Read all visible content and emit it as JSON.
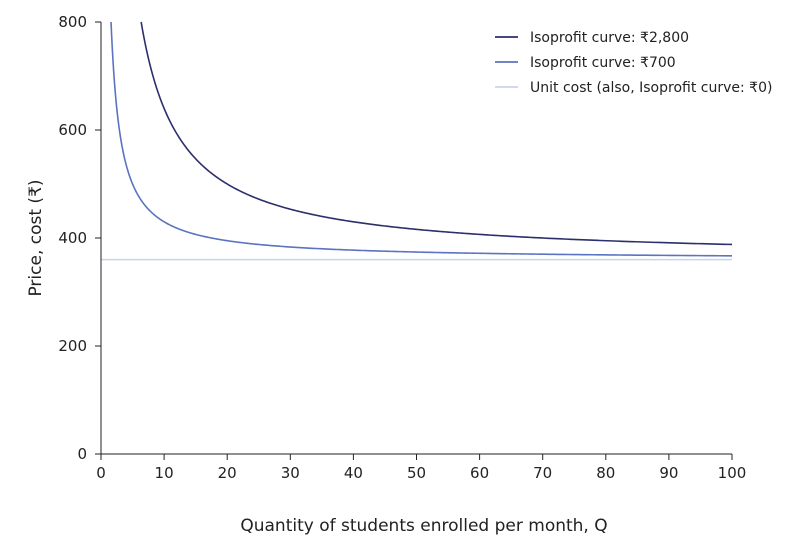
{
  "chart_data": {
    "type": "line",
    "xlabel": "Quantity of students enrolled per month, Q",
    "ylabel": "Price, cost (₹)",
    "xlim": [
      0,
      100
    ],
    "ylim": [
      0,
      800
    ],
    "xticks": [
      "0",
      "10",
      "20",
      "30",
      "40",
      "50",
      "60",
      "70",
      "80",
      "90",
      "100"
    ],
    "yticks": [
      "0",
      "200",
      "400",
      "600",
      "800"
    ],
    "grid": false,
    "legend_position": "top-right",
    "unit_cost": 360,
    "series": [
      {
        "name": "Isoprofit curve: ₹2,800",
        "profit": 2800,
        "formula": "P = 360 + 2800/Q",
        "color": "#2b2f6b",
        "points": [
          [
            6.4,
            800
          ],
          [
            10,
            640
          ],
          [
            20,
            500
          ],
          [
            30,
            453
          ],
          [
            40,
            430
          ],
          [
            50,
            416
          ],
          [
            60,
            407
          ],
          [
            70,
            400
          ],
          [
            80,
            395
          ],
          [
            90,
            391
          ],
          [
            100,
            388
          ]
        ]
      },
      {
        "name": "Isoprofit curve: ₹700",
        "profit": 700,
        "formula": "P = 360 + 700/Q",
        "color": "#5b73c0",
        "points": [
          [
            1.6,
            800
          ],
          [
            5,
            500
          ],
          [
            10,
            430
          ],
          [
            20,
            395
          ],
          [
            30,
            383
          ],
          [
            40,
            378
          ],
          [
            50,
            374
          ],
          [
            60,
            372
          ],
          [
            70,
            370
          ],
          [
            80,
            369
          ],
          [
            90,
            368
          ],
          [
            100,
            367
          ]
        ]
      },
      {
        "name": "Unit cost (also, Isoprofit curve: ₹0)",
        "profit": 0,
        "formula": "P = 360",
        "color": "#c8d4ea",
        "points": [
          [
            0,
            360
          ],
          [
            100,
            360
          ]
        ]
      }
    ]
  }
}
